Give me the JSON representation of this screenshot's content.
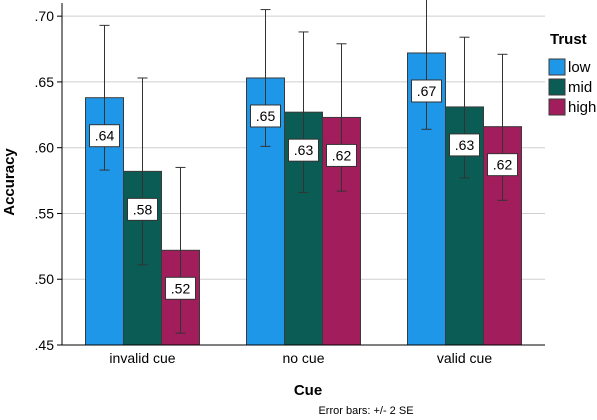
{
  "chart_data": {
    "type": "bar",
    "xlabel": "Cue",
    "ylabel": "Accuracy",
    "ylim": [
      0.45,
      0.71
    ],
    "yticks": [
      ".45",
      ".50",
      ".55",
      ".60",
      ".65",
      ".70"
    ],
    "ytick_values": [
      0.45,
      0.5,
      0.55,
      0.6,
      0.65,
      0.7
    ],
    "categories": [
      "invalid cue",
      "no cue",
      "valid cue"
    ],
    "legend_title": "Trust",
    "legend_position": "right",
    "grid": "horizontal",
    "series": [
      {
        "name": "low",
        "color": "#1f97e8",
        "values": [
          0.638,
          0.653,
          0.672
        ],
        "labels": [
          ".64",
          ".65",
          ".67"
        ],
        "err_low": [
          0.583,
          0.601,
          0.614
        ],
        "err_high": [
          0.693,
          0.705,
          0.713
        ]
      },
      {
        "name": "mid",
        "color": "#0b5c55",
        "values": [
          0.582,
          0.627,
          0.631
        ],
        "labels": [
          ".58",
          ".63",
          ".63"
        ],
        "err_low": [
          0.511,
          0.566,
          0.577
        ],
        "err_high": [
          0.653,
          0.688,
          0.684
        ]
      },
      {
        "name": "high",
        "color": "#a11d5c",
        "values": [
          0.522,
          0.623,
          0.616
        ],
        "labels": [
          ".52",
          ".62",
          ".62"
        ],
        "err_low": [
          0.459,
          0.567,
          0.56
        ],
        "err_high": [
          0.585,
          0.679,
          0.671
        ]
      }
    ],
    "footnote": "Error bars: +/- 2 SE"
  }
}
